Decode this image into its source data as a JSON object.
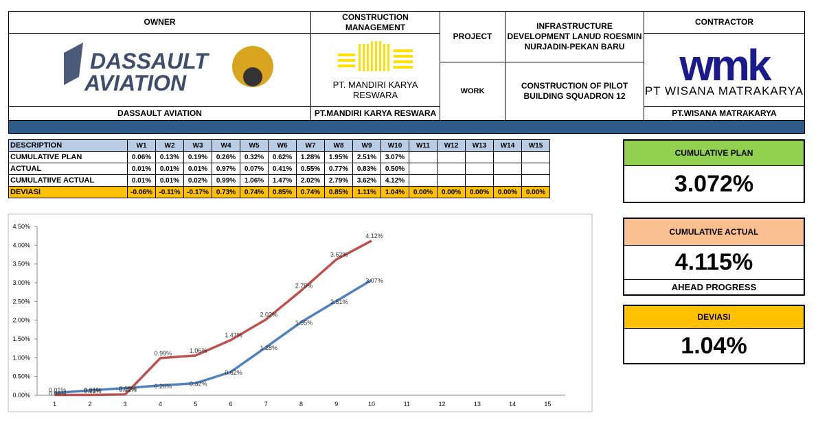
{
  "header": {
    "owner": {
      "label": "OWNER",
      "logo_line1": "DASSAULT",
      "logo_line2": "AVIATION",
      "name": "DASSAULT AVIATION"
    },
    "cm": {
      "label": "CONSTRUCTION MANAGEMENT",
      "logo_text": "PT. MANDIRI KARYA RESWARA",
      "name": "PT.MANDIRI KARYA RESWARA"
    },
    "project": {
      "label": "PROJECT",
      "value": "INFRASTRUCTURE DEVELOPMENT LANUD ROESMIN NURJADIN-PEKAN BARU"
    },
    "work": {
      "label": "WORK",
      "value": "CONSTRUCTION OF PILOT BUILDING SQUADRON 12"
    },
    "contractor": {
      "label": "CONTRACTOR",
      "logo": "wmk",
      "logo_text": "PT WISANA MATRAKARYA",
      "name": "PT.WISANA MATRAKARYA"
    }
  },
  "table": {
    "header": [
      "DESCRIPTION",
      "W1",
      "W2",
      "W3",
      "W4",
      "W5",
      "W6",
      "W7",
      "W8",
      "W9",
      "W10",
      "W11",
      "W12",
      "W13",
      "W14",
      "W15"
    ],
    "rows": [
      {
        "label": "CUMULATIVE PLAN",
        "cells": [
          "0.06%",
          "0.13%",
          "0.19%",
          "0.26%",
          "0.32%",
          "0.62%",
          "1.28%",
          "1.95%",
          "2.51%",
          "3.07%"
        ]
      },
      {
        "label": "ACTUAL",
        "cells": [
          "0.01%",
          "0.01%",
          "0.01%",
          "0.97%",
          "0.07%",
          "0.41%",
          "0.55%",
          "0.77%",
          "0.83%",
          "0.50%"
        ]
      },
      {
        "label": "CUMULATIIVE ACTUAL",
        "cells": [
          "0.01%",
          "0.01%",
          "0.02%",
          "0.99%",
          "1.06%",
          "1.47%",
          "2.02%",
          "2.79%",
          "3.62%",
          "4.12%"
        ]
      },
      {
        "label": "DEVIASI",
        "cells": [
          "-0.06%",
          "-0.11%",
          "-0.17%",
          "0.73%",
          "0.74%",
          "0.85%",
          "0.74%",
          "0.85%",
          "1.11%",
          "1.04%",
          "0.00%",
          "0.00%",
          "0.00%",
          "0.00%",
          "0.00%"
        ]
      }
    ]
  },
  "cards": {
    "plan": {
      "label": "CUMULATIVE PLAN",
      "value": "3.072%"
    },
    "actual": {
      "label": "CUMULATIVE ACTUAL",
      "value": "4.115%",
      "note": "AHEAD PROGRESS"
    },
    "deviasi": {
      "label": "DEVIASI",
      "value": "1.04%"
    }
  },
  "chart_data": {
    "type": "line",
    "categories": [
      1,
      2,
      3,
      4,
      5,
      6,
      7,
      8,
      9,
      10,
      11,
      12,
      13,
      14,
      15
    ],
    "ylim": [
      0,
      4.5
    ],
    "yticks": [
      {
        "value": 0,
        "label": "0.00%"
      },
      {
        "value": 0.5,
        "label": "0.50%"
      },
      {
        "value": 1,
        "label": "1.00%"
      },
      {
        "value": 1.5,
        "label": "1.50%"
      },
      {
        "value": 2,
        "label": "2.00%"
      },
      {
        "value": 2.5,
        "label": "2.50%"
      },
      {
        "value": 3,
        "label": "3.00%"
      },
      {
        "value": 3.5,
        "label": "3.50%"
      },
      {
        "value": 4,
        "label": "4.00%"
      },
      {
        "value": 4.5,
        "label": "4.50%"
      }
    ],
    "series": [
      {
        "name": "CUMULATIVE PLAN",
        "color": "#4f81bd",
        "values": [
          0.06,
          0.13,
          0.19,
          0.26,
          0.32,
          0.62,
          1.28,
          1.95,
          2.51,
          3.07,
          null,
          null,
          null,
          null,
          null
        ],
        "value_labels": [
          "0.06%",
          "0.13%",
          "0.19%",
          "0.26%",
          "0.32%",
          "0.62%",
          "1.28%",
          "1.95%",
          "2.51%",
          "3.07%",
          null,
          null,
          null,
          null,
          null
        ]
      },
      {
        "name": "CUMULATIIVE ACTUAL",
        "color": "#c0504d",
        "values": [
          0.01,
          0.01,
          0.02,
          0.99,
          1.06,
          1.47,
          2.02,
          2.79,
          3.62,
          4.12,
          null,
          null,
          null,
          null,
          null
        ],
        "value_labels": [
          "0.01%",
          "0.01%",
          "0.02%",
          "0.99%",
          "1.06%",
          "1.47%",
          "2.02%",
          "2.79%",
          "3.62%",
          "4.12%",
          null,
          null,
          null,
          null,
          null
        ]
      }
    ]
  }
}
